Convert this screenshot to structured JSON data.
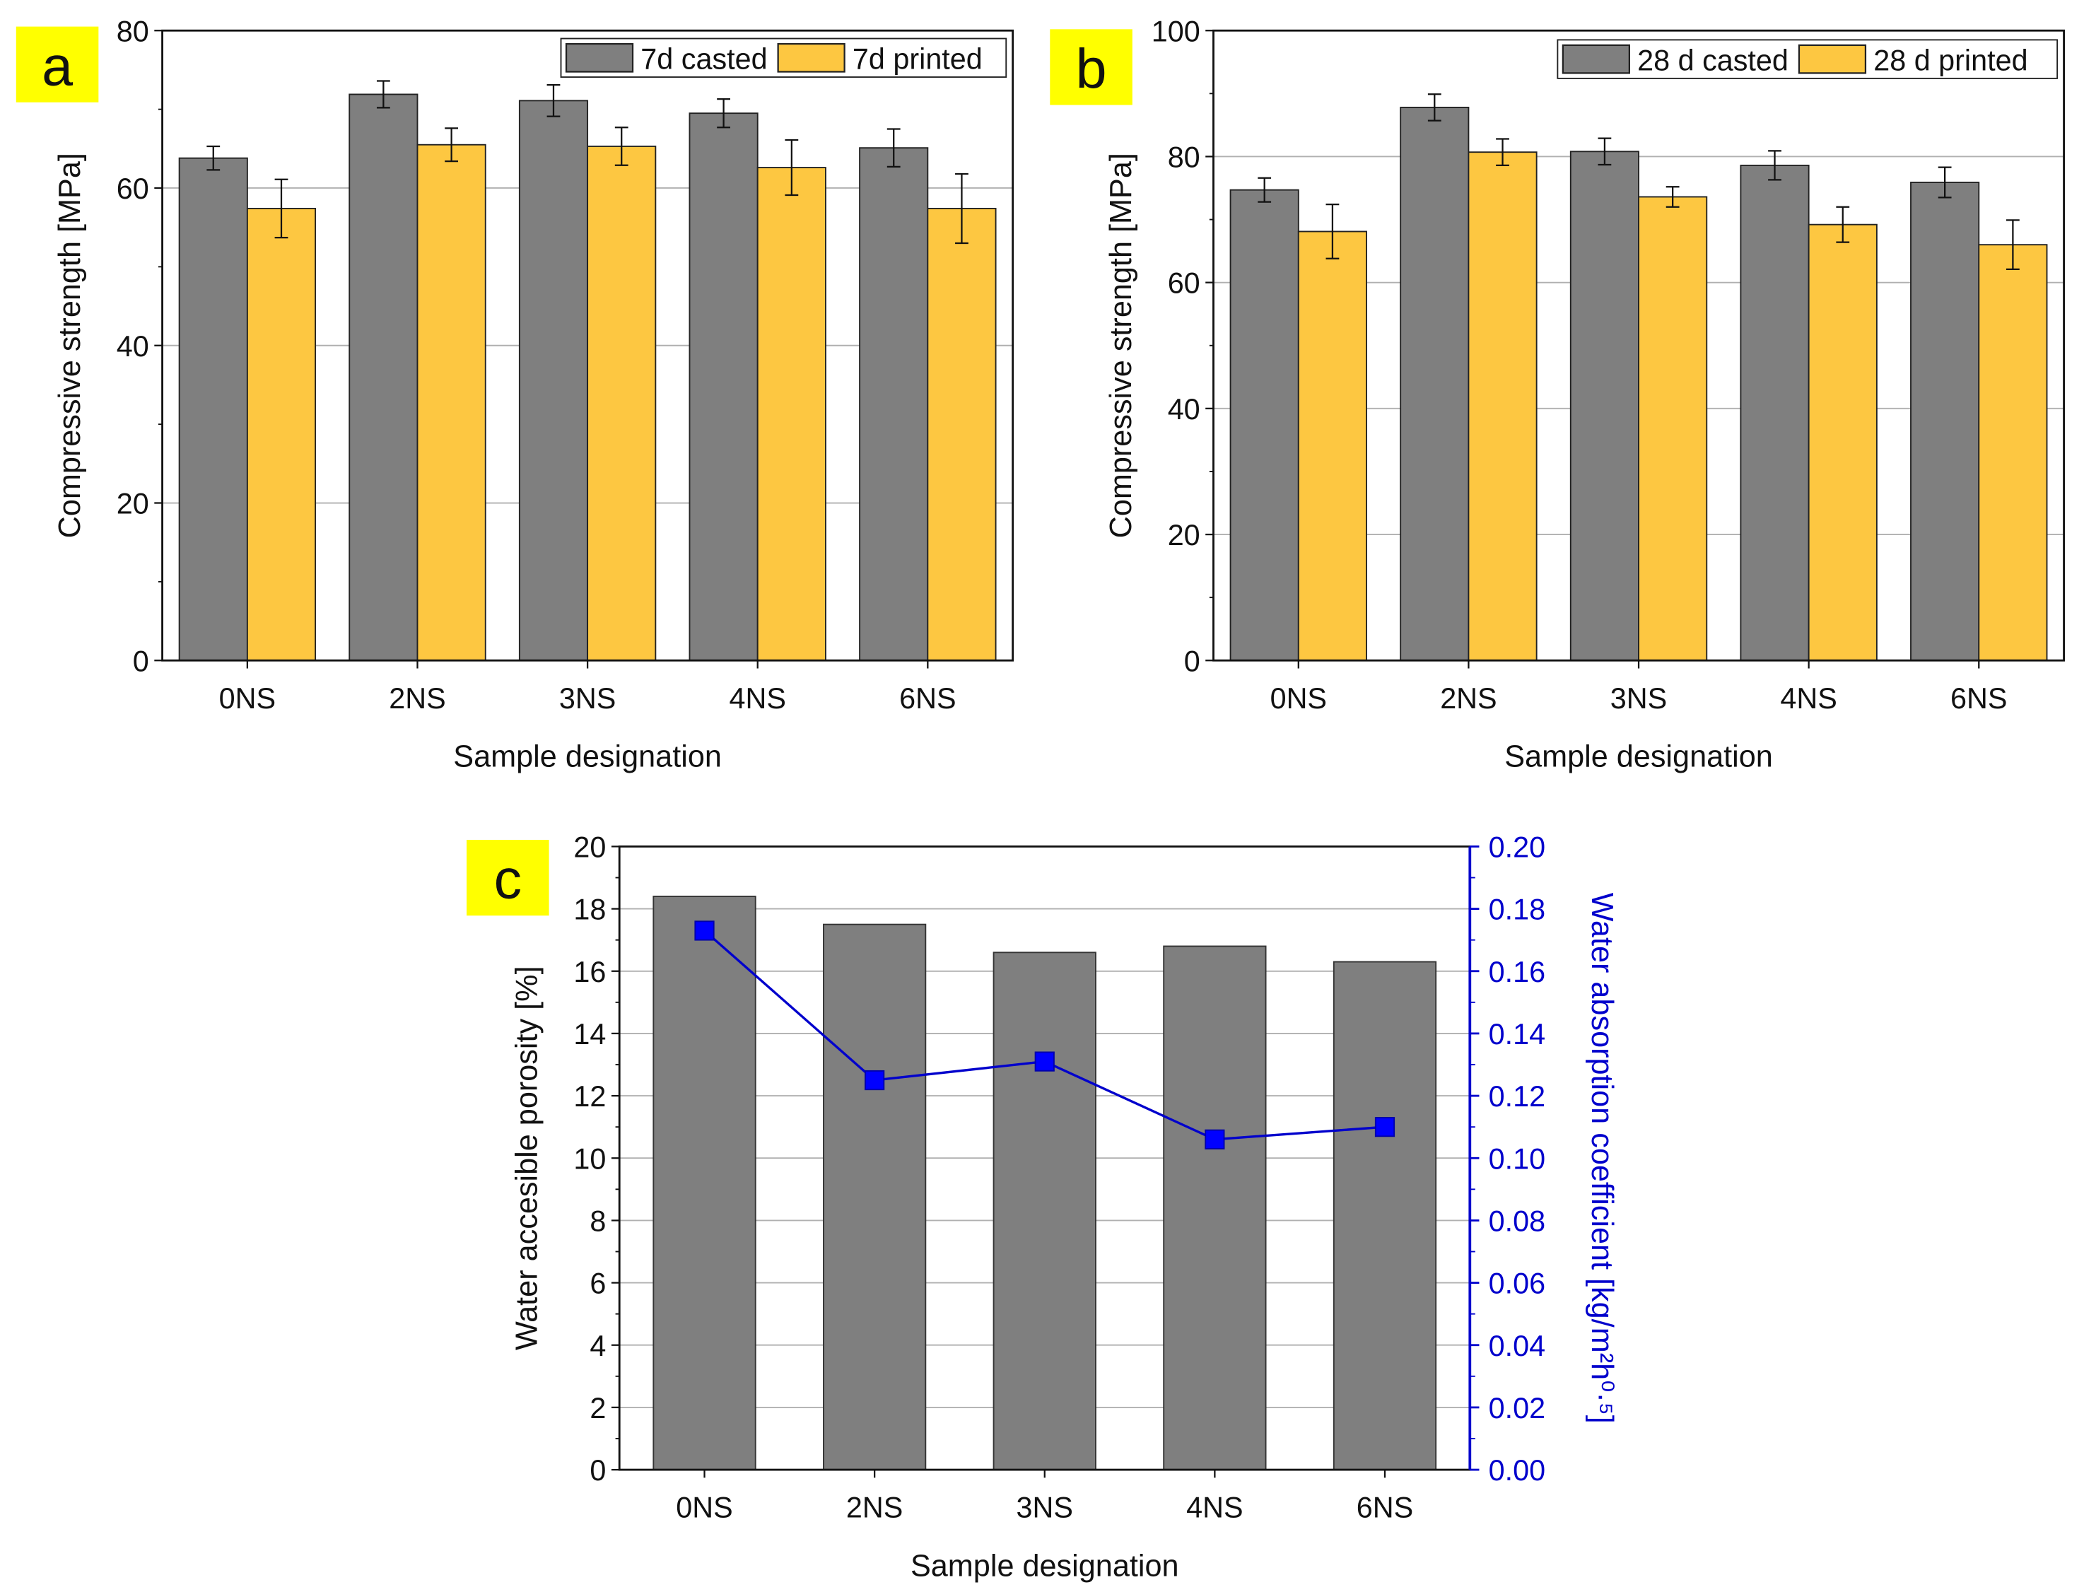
{
  "chart_data": [
    {
      "panel": "a",
      "type": "bar",
      "categories": [
        "0NS",
        "2NS",
        "3NS",
        "4NS",
        "6NS"
      ],
      "series": [
        {
          "name": "7d casted",
          "color": "#7f7f7f",
          "values": [
            63.8,
            71.9,
            71.1,
            69.5,
            65.1
          ],
          "errors": [
            1.5,
            1.7,
            2.0,
            1.8,
            2.4
          ]
        },
        {
          "name": "7d printed",
          "color": "#fdc741",
          "values": [
            57.4,
            65.5,
            65.3,
            62.6,
            57.4
          ],
          "errors": [
            3.7,
            2.1,
            2.4,
            3.5,
            4.4
          ]
        }
      ],
      "xlabel": "Sample designation",
      "ylabel": "Compressive strength [MPa]",
      "ylim": [
        0,
        80
      ],
      "yticks": [
        0,
        20,
        40,
        60,
        80
      ],
      "grid": true,
      "legend": "top-right"
    },
    {
      "panel": "b",
      "type": "bar",
      "categories": [
        "0NS",
        "2NS",
        "3NS",
        "4NS",
        "6NS"
      ],
      "series": [
        {
          "name": "28 d casted",
          "color": "#7f7f7f",
          "values": [
            74.7,
            87.8,
            80.8,
            78.6,
            75.9
          ],
          "errors": [
            1.9,
            2.1,
            2.1,
            2.3,
            2.4
          ]
        },
        {
          "name": "28 d printed",
          "color": "#fdc741",
          "values": [
            68.1,
            80.7,
            73.6,
            69.2,
            66.0
          ],
          "errors": [
            4.3,
            2.1,
            1.6,
            2.8,
            3.9
          ]
        }
      ],
      "xlabel": "Sample designation",
      "ylabel": "Compressive strength [MPa]",
      "ylim": [
        0,
        100
      ],
      "yticks": [
        0,
        20,
        40,
        60,
        80,
        100
      ],
      "grid": true,
      "legend": "top-right"
    },
    {
      "panel": "c",
      "type": "bar+line",
      "categories": [
        "0NS",
        "2NS",
        "3NS",
        "4NS",
        "6NS"
      ],
      "bars": {
        "name": "Water accesible porosity",
        "color": "#7f7f7f",
        "values": [
          18.4,
          17.5,
          16.6,
          16.8,
          16.3
        ]
      },
      "line": {
        "name": "Water absorption coefficient",
        "color": "#0000cc",
        "values": [
          0.173,
          0.125,
          0.131,
          0.106,
          0.11
        ]
      },
      "xlabel": "Sample designation",
      "ylabel": "Water accesible porosity [%]",
      "ylabel_right": "Water absorption coefficient [kg/m²h⁰·⁵]",
      "ylim": [
        0,
        20
      ],
      "yticks": [
        0,
        2,
        4,
        6,
        8,
        10,
        12,
        14,
        16,
        18,
        20
      ],
      "ylim_right": [
        0,
        0.2
      ],
      "yticks_right": [
        "0.00",
        "0.02",
        "0.04",
        "0.06",
        "0.08",
        "0.10",
        "0.12",
        "0.14",
        "0.16",
        "0.18",
        "0.20"
      ],
      "grid": true
    }
  ],
  "colors": {
    "label_box": "#ffff00",
    "axis_right": "#0000cc",
    "grid": "#b0b0b0"
  }
}
